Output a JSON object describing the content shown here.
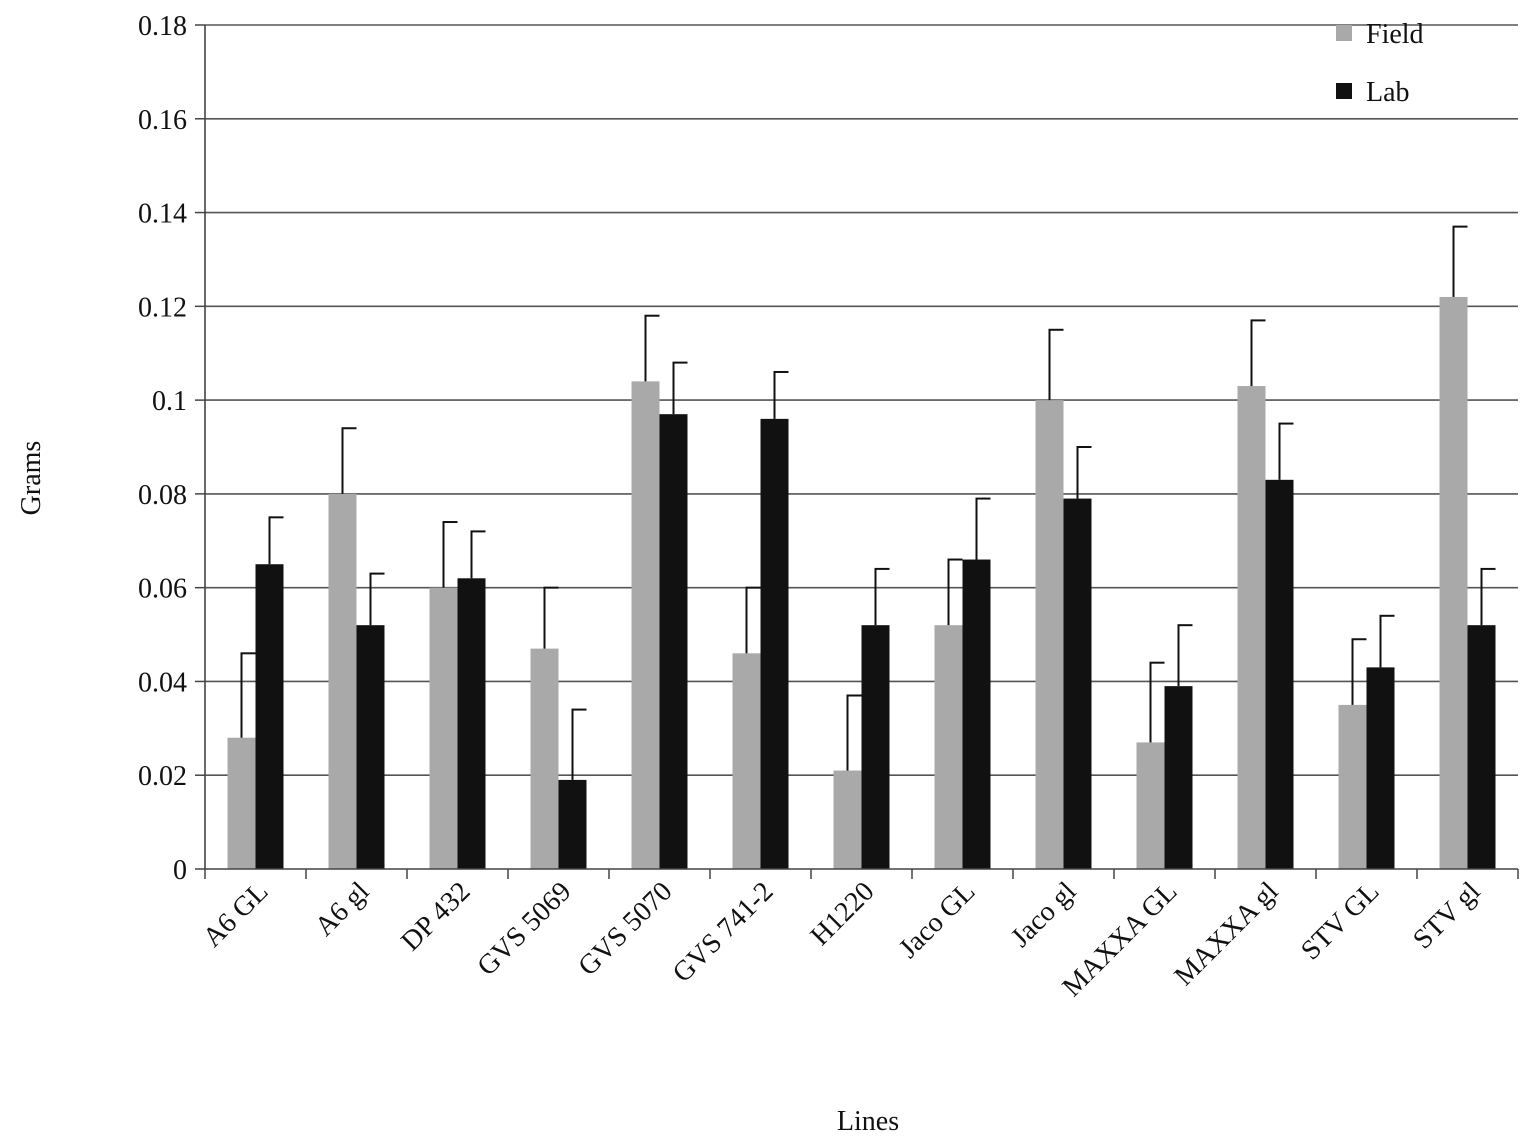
{
  "chart_data": {
    "type": "bar",
    "title": "",
    "xlabel": "Lines",
    "ylabel": "Grams",
    "ylim": [
      0,
      0.18
    ],
    "yticks": [
      "0",
      "0.02",
      "0.04",
      "0.06",
      "0.08",
      "0.1",
      "0.12",
      "0.14",
      "0.16",
      "0.18"
    ],
    "grid": true,
    "legend_position": "top-right",
    "categories": [
      "A6 GL",
      "A6 gl",
      "DP 432",
      "GVS 5069",
      "GVS 5070",
      "GVS 741-2",
      "H1220",
      "Jaco GL",
      "Jaco gl",
      "MAXXA GL",
      "MAXXA gl",
      "STV GL",
      "STV gl"
    ],
    "series": [
      {
        "name": "Field",
        "color": "#a9a9a9",
        "values": [
          0.028,
          0.08,
          0.06,
          0.047,
          0.104,
          0.046,
          0.021,
          0.052,
          0.1,
          0.027,
          0.103,
          0.035,
          0.122
        ],
        "error": [
          0.018,
          0.014,
          0.014,
          0.013,
          0.014,
          0.014,
          0.016,
          0.014,
          0.015,
          0.017,
          0.014,
          0.014,
          0.015
        ]
      },
      {
        "name": "Lab",
        "color": "#111111",
        "values": [
          0.065,
          0.052,
          0.062,
          0.019,
          0.097,
          0.096,
          0.052,
          0.066,
          0.079,
          0.039,
          0.083,
          0.043,
          0.052
        ],
        "error": [
          0.01,
          0.011,
          0.01,
          0.015,
          0.011,
          0.01,
          0.012,
          0.013,
          0.011,
          0.013,
          0.012,
          0.011,
          0.012
        ]
      }
    ]
  }
}
